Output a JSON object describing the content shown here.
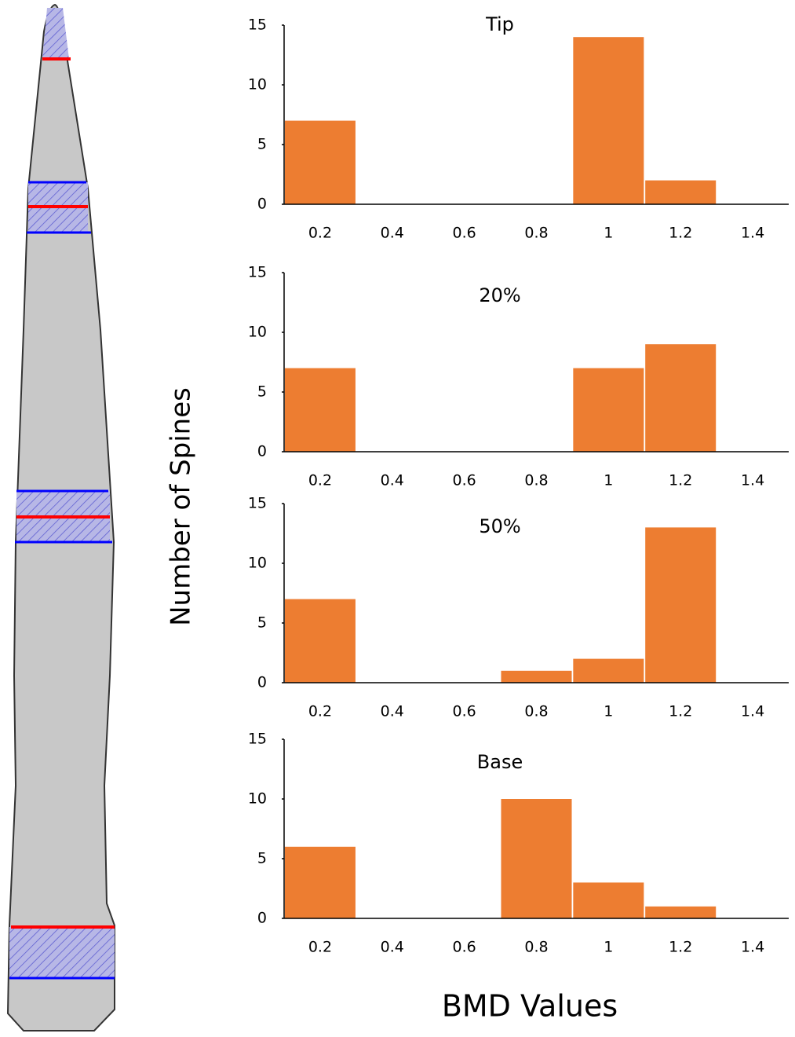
{
  "ylabel": "Number of Spines",
  "xlabel": "BMD Values",
  "chart_data": [
    {
      "type": "bar",
      "title": "Tip",
      "categories": [
        "0.2",
        "0.4",
        "0.6",
        "0.8",
        "1",
        "1.2",
        "1.4"
      ],
      "values": [
        7,
        0,
        0,
        0,
        14,
        2,
        0
      ],
      "color": "#ed7d31",
      "ylim": [
        0,
        15
      ],
      "yticks": [
        0,
        5,
        10,
        15
      ]
    },
    {
      "type": "bar",
      "title": "20%",
      "categories": [
        "0.2",
        "0.4",
        "0.6",
        "0.8",
        "1",
        "1.2",
        "1.4"
      ],
      "values": [
        7,
        0,
        0,
        0,
        7,
        9,
        0
      ],
      "color": "#ed7d31",
      "ylim": [
        0,
        15
      ],
      "yticks": [
        0,
        5,
        10,
        15
      ]
    },
    {
      "type": "bar",
      "title": "50%",
      "categories": [
        "0.2",
        "0.4",
        "0.6",
        "0.8",
        "1",
        "1.2",
        "1.4"
      ],
      "values": [
        7,
        0,
        0,
        1,
        2,
        13,
        0
      ],
      "color": "#ed7d31",
      "ylim": [
        0,
        15
      ],
      "yticks": [
        0,
        5,
        10,
        15
      ]
    },
    {
      "type": "bar",
      "title": "Base",
      "categories": [
        "0.2",
        "0.4",
        "0.6",
        "0.8",
        "1",
        "1.2",
        "1.4"
      ],
      "values": [
        6,
        0,
        0,
        10,
        3,
        1,
        0
      ],
      "color": "#ed7d31",
      "ylim": [
        0,
        15
      ],
      "yticks": [
        0,
        5,
        10,
        15
      ]
    }
  ]
}
